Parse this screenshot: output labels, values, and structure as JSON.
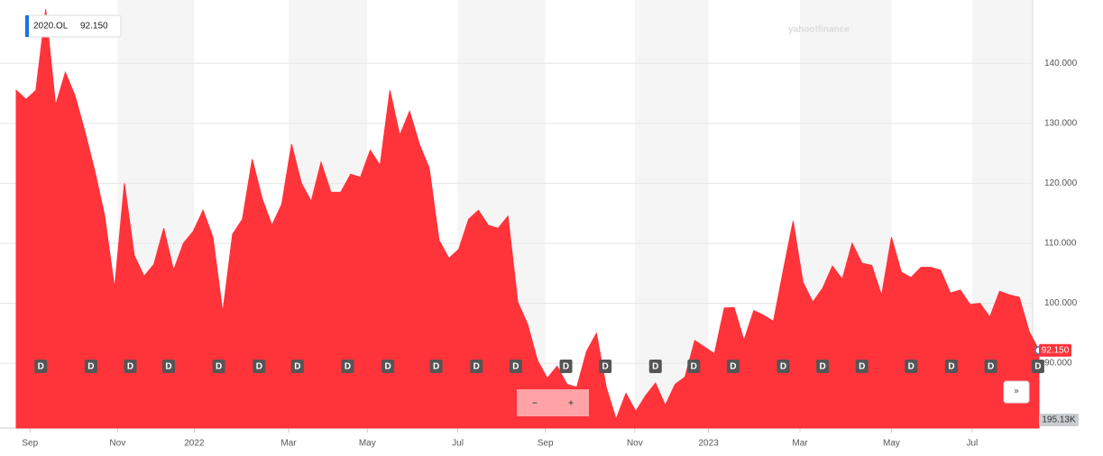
{
  "chart_data": {
    "type": "area",
    "symbol": "2020.OL",
    "price_label": "92.150",
    "logo": "yahoo!finance",
    "volume_label": "195.13K",
    "zoom_out": "−",
    "zoom_in": "+",
    "expand": "»",
    "dividend_label": "D",
    "dividend_x": [
      2.5,
      7.6,
      11.6,
      15.5,
      20.6,
      24.7,
      28.6,
      33.7,
      37.8,
      42.7,
      46.8,
      50.8,
      55.9,
      59.9,
      65,
      68.9,
      72.9,
      78,
      82,
      86,
      91,
      95.1,
      99.1,
      103.9
    ],
    "color": "#ff333a",
    "values": [
      135.5,
      134,
      135.5,
      149,
      133,
      138.5,
      134.5,
      128.5,
      122,
      114.5,
      102.5,
      120,
      108,
      104.5,
      106.5,
      112.5,
      105.5,
      110,
      112,
      115.5,
      111,
      98.5,
      111.5,
      114,
      124,
      117.5,
      113,
      116.5,
      126.5,
      120,
      117,
      123.5,
      118.5,
      118.5,
      121.5,
      121,
      125.5,
      123,
      135.5,
      128,
      132,
      126.5,
      122.5,
      110.5,
      107.5,
      109,
      114,
      115.5,
      113,
      112.5,
      114.5,
      100.2,
      96.5,
      90.5,
      87.5,
      89.5,
      86.5,
      86,
      92,
      95,
      86,
      80.7,
      85,
      82,
      84.6,
      86.7,
      83,
      86.5,
      87.7,
      93.8,
      92.7,
      91.6,
      99.2,
      99.3,
      93.8,
      98.8,
      98,
      97,
      105.5,
      113.7,
      103.5,
      100.2,
      102.5,
      106.2,
      104,
      110,
      106.7,
      106.3,
      101.3,
      111,
      105.2,
      104.3,
      106,
      106,
      105.5,
      101.7,
      102.2,
      99.8,
      100,
      97.7,
      102,
      101.4,
      101,
      95.3,
      92.15
    ],
    "xlim": [
      0,
      104
    ],
    "xticks": [
      {
        "value": 1.4,
        "label": "Sep"
      },
      {
        "value": 10.3,
        "label": "Nov"
      },
      {
        "value": 18.1,
        "label": "2022"
      },
      {
        "value": 27.7,
        "label": "Mar"
      },
      {
        "value": 35.7,
        "label": "May"
      },
      {
        "value": 44.9,
        "label": "Jul"
      },
      {
        "value": 53.8,
        "label": "Sep"
      },
      {
        "value": 62.9,
        "label": "Nov"
      },
      {
        "value": 70.4,
        "label": "2023"
      },
      {
        "value": 79.7,
        "label": "Mar"
      },
      {
        "value": 89,
        "label": "May"
      },
      {
        "value": 97.2,
        "label": "Jul"
      }
    ],
    "ylim": [
      79.2,
      149.8
    ],
    "yticks": [
      {
        "value": 90,
        "label": "90.000"
      },
      {
        "value": 100,
        "label": "100.000"
      },
      {
        "value": 110,
        "label": "110.000"
      },
      {
        "value": 120,
        "label": "120.000"
      },
      {
        "value": 130,
        "label": "130.000"
      },
      {
        "value": 140,
        "label": "140.000"
      }
    ],
    "grid": true
  }
}
